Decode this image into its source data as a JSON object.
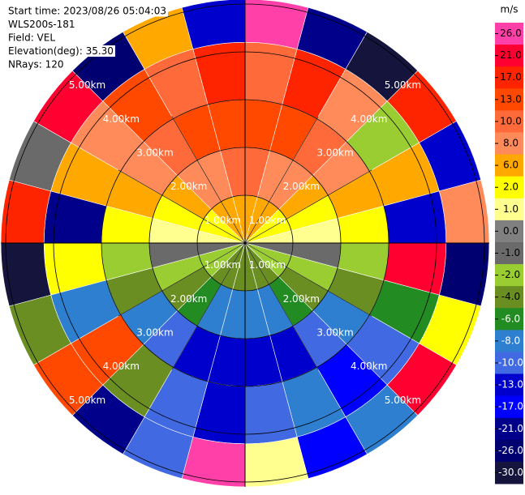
{
  "chart_data": {
    "type": "ppi",
    "info": [
      "Start time: 2023/08/26 05:04:03",
      "WLS200s-181",
      "Field: VEL",
      "Elevation(deg): 35.30",
      "NRays: 120"
    ],
    "rings": [
      {
        "value": 1,
        "label": "1.00km"
      },
      {
        "value": 2,
        "label": "2.00km"
      },
      {
        "value": 3,
        "label": "3.00km"
      },
      {
        "value": 4,
        "label": "4.00km"
      },
      {
        "value": 5,
        "label": "5.00km"
      }
    ],
    "range_bins": [
      0,
      1,
      2,
      3,
      4.2,
      5.1
    ],
    "azimuth_step": 15,
    "field": [
      [
        5,
        5,
        4,
        3,
        2,
        1,
        -1,
        -2,
        -3,
        -4,
        -5,
        -5,
        -5,
        -5,
        -4,
        -3,
        -2,
        -1,
        1,
        2,
        3,
        4,
        5,
        5
      ],
      [
        9,
        8,
        7,
        5,
        3,
        1,
        -1,
        -3,
        -5,
        -7,
        -8,
        -9,
        -9,
        -8,
        -7,
        -5,
        -3,
        -1,
        1,
        3,
        5,
        7,
        8,
        9
      ],
      [
        13,
        12,
        10,
        8,
        5,
        2,
        -2,
        -5,
        -8,
        -10,
        -12,
        -13,
        -13,
        -12,
        -10,
        -8,
        -5,
        -2,
        2,
        5,
        8,
        10,
        12,
        13
      ],
      [
        10,
        17,
        8,
        -2,
        6,
        -13,
        21,
        -6,
        -10,
        -17,
        -8,
        -10,
        -13,
        -10,
        -4,
        13,
        -8,
        2,
        -21,
        6,
        8,
        13,
        10,
        17
      ],
      [
        26,
        -21,
        -30,
        17,
        -13,
        8,
        -26,
        2,
        21,
        -8,
        -17,
        1,
        26,
        -10,
        -21,
        13,
        -4,
        -30,
        17,
        -1,
        21,
        -26,
        6,
        -13
      ]
    ],
    "colorbar": {
      "label": "m/s",
      "ticks": [
        {
          "value": 26,
          "label": "26.0"
        },
        {
          "value": 21,
          "label": "21.0"
        },
        {
          "value": 17,
          "label": "17.0"
        },
        {
          "value": 13,
          "label": "13.0"
        },
        {
          "value": 10,
          "label": "10.0"
        },
        {
          "value": 8,
          "label": "8.0"
        },
        {
          "value": 6,
          "label": "6.0"
        },
        {
          "value": 2,
          "label": "2.0"
        },
        {
          "value": 1,
          "label": "1.0"
        },
        {
          "value": 0,
          "label": "0.0"
        },
        {
          "value": -1,
          "label": "-1.0"
        },
        {
          "value": -2,
          "label": "-2.0"
        },
        {
          "value": -4,
          "label": "-4.0"
        },
        {
          "value": -6,
          "label": "-6.0"
        },
        {
          "value": -8,
          "label": "-8.0"
        },
        {
          "value": -10,
          "label": "-10.0"
        },
        {
          "value": -13,
          "label": "-13.0"
        },
        {
          "value": -17,
          "label": "-17.0"
        },
        {
          "value": -21,
          "label": "-21.0"
        },
        {
          "value": -26,
          "label": "-26.0"
        },
        {
          "value": -30,
          "label": "-30.0"
        }
      ],
      "colors": [
        "#ff40a8",
        "#ff0030",
        "#ff2400",
        "#ff4800",
        "#ff6a3a",
        "#ff8a5a",
        "#ffa800",
        "#ffff00",
        "#ffff90",
        "#808080",
        "#6a6a6a",
        "#9acd32",
        "#6b8e23",
        "#228b22",
        "#2e7fd0",
        "#4169e1",
        "#0000cd",
        "#0000ff",
        "#00008b",
        "#000070",
        "#14143c"
      ]
    }
  }
}
